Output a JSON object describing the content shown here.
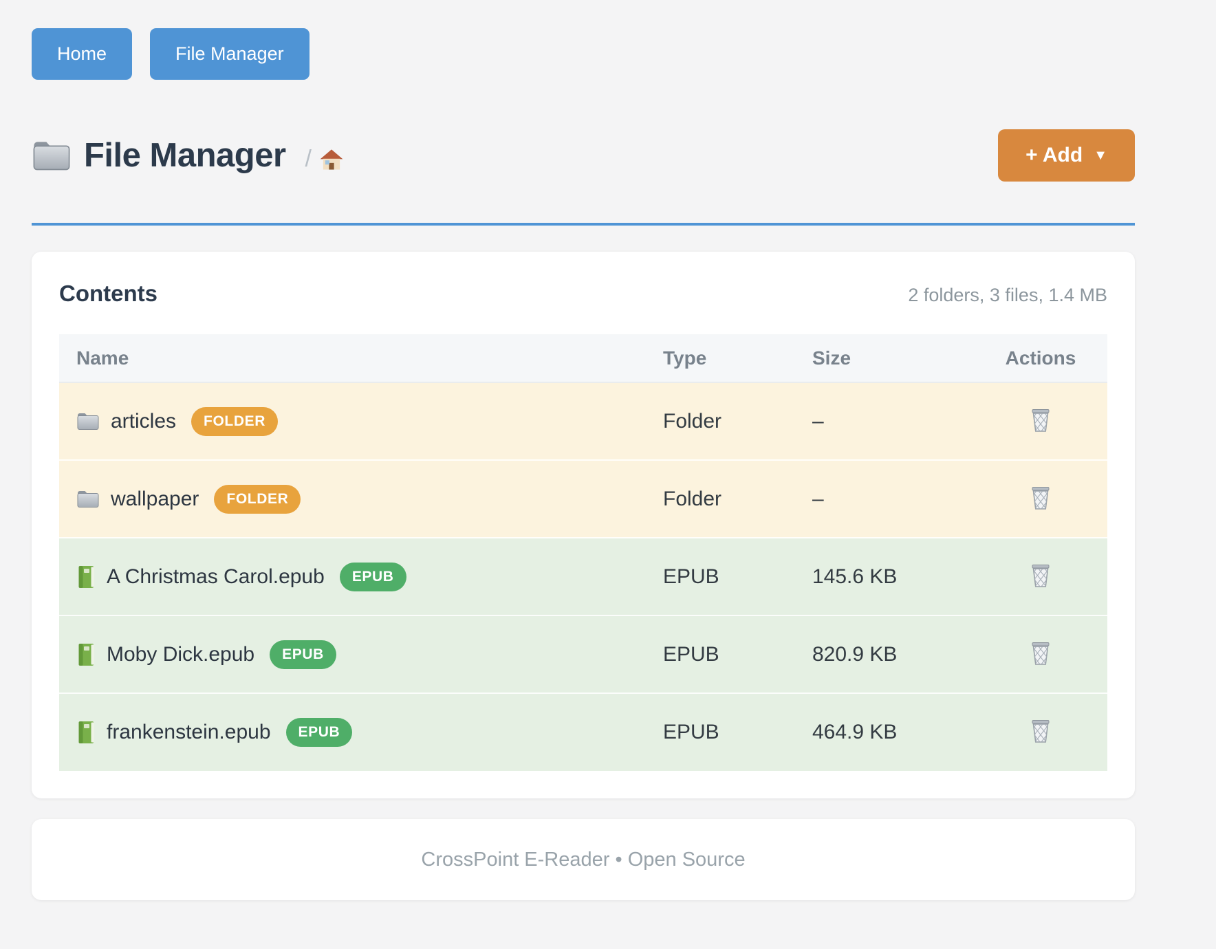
{
  "nav": {
    "home_label": "Home",
    "file_manager_label": "File Manager"
  },
  "header": {
    "title": "File Manager",
    "breadcrumb_separator": "/",
    "add_button_label": "+ Add",
    "add_button_caret": "▼"
  },
  "contents": {
    "heading": "Contents",
    "summary": "2 folders, 3 files, 1.4 MB",
    "columns": [
      "Name",
      "Type",
      "Size",
      "Actions"
    ],
    "rows": [
      {
        "name": "articles",
        "badge": "FOLDER",
        "type": "Folder",
        "size": "–",
        "kind": "folder"
      },
      {
        "name": "wallpaper",
        "badge": "FOLDER",
        "type": "Folder",
        "size": "–",
        "kind": "folder"
      },
      {
        "name": "A Christmas Carol.epub",
        "badge": "EPUB",
        "type": "EPUB",
        "size": "145.6 KB",
        "kind": "epub"
      },
      {
        "name": "Moby Dick.epub",
        "badge": "EPUB",
        "type": "EPUB",
        "size": "820.9 KB",
        "kind": "epub"
      },
      {
        "name": "frankenstein.epub",
        "badge": "EPUB",
        "type": "EPUB",
        "size": "464.9 KB",
        "kind": "epub"
      }
    ]
  },
  "footer": {
    "text": "CrossPoint E-Reader • Open Source"
  },
  "colors": {
    "primary_blue": "#4f94d5",
    "accent_orange": "#d8883e",
    "badge_folder": "#e8a33d",
    "badge_epub": "#4fae68",
    "row_folder_bg": "#fcf3de",
    "row_epub_bg": "#e5f0e3"
  }
}
